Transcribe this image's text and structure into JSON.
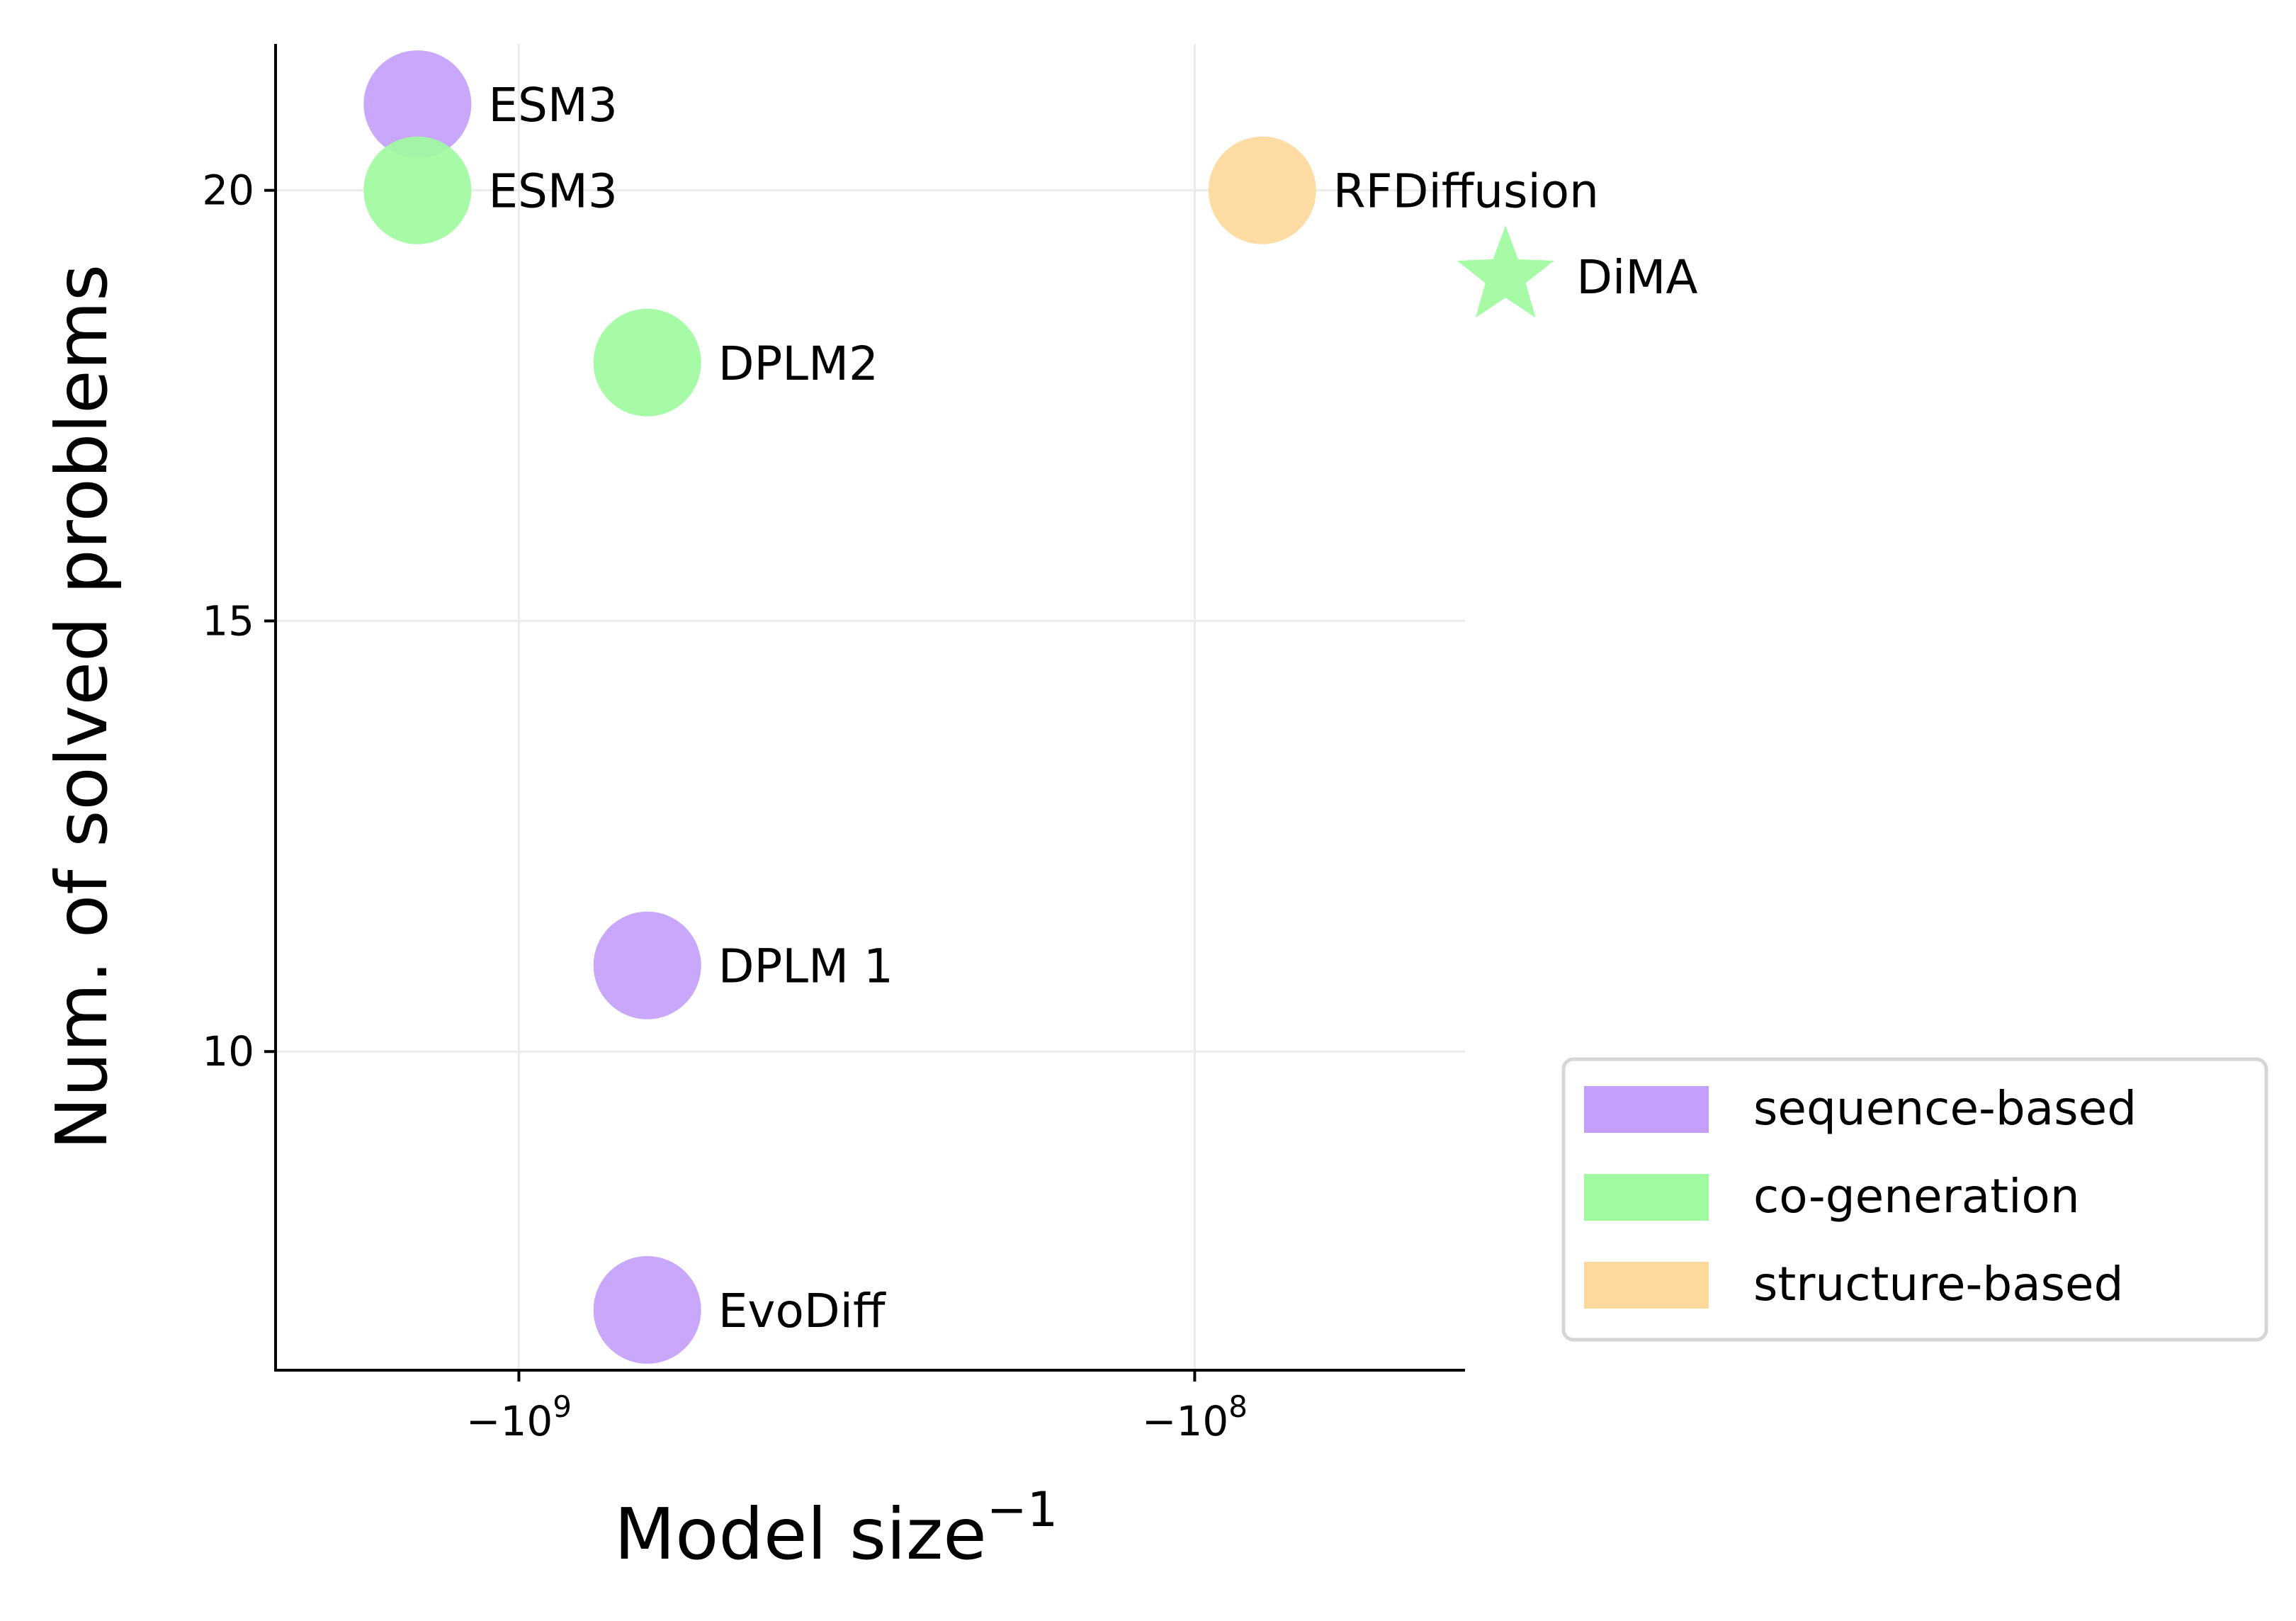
{
  "chart_data": {
    "type": "scatter",
    "title": "",
    "xlabel": "Model size",
    "xlabel_superscript": "−1",
    "ylabel": "Num. of solved problems",
    "x_scale": "symlog-negative",
    "x_log10_range": [
      9.36,
      7.6
    ],
    "ylim": [
      6.3,
      21.7
    ],
    "grid": true,
    "x_ticks": [
      {
        "log10": 9,
        "base": "−10",
        "exp": "9"
      },
      {
        "log10": 8,
        "base": "−10",
        "exp": "8"
      }
    ],
    "y_ticks": [
      {
        "value": 10,
        "label": "10"
      },
      {
        "value": 15,
        "label": "15"
      },
      {
        "value": 20,
        "label": "20"
      }
    ],
    "categories": [
      {
        "key": "sequence",
        "name": "sequence-based",
        "color": "#c49ffb"
      },
      {
        "key": "cogen",
        "name": "co-generation",
        "color": "#a0fba0"
      },
      {
        "key": "structure",
        "name": "structure-based",
        "color": "#ffd99c"
      }
    ],
    "points": [
      {
        "label": "ESM3",
        "model_size": 1400000000,
        "log10_size": 9.15,
        "y": 21,
        "category": "sequence",
        "marker": "circle"
      },
      {
        "label": "ESM3",
        "model_size": 1400000000,
        "log10_size": 9.15,
        "y": 20,
        "category": "cogen",
        "marker": "circle"
      },
      {
        "label": "DPLM2",
        "model_size": 650000000,
        "log10_size": 8.81,
        "y": 18,
        "category": "cogen",
        "marker": "circle"
      },
      {
        "label": "DPLM 1",
        "model_size": 650000000,
        "log10_size": 8.81,
        "y": 11,
        "category": "sequence",
        "marker": "circle"
      },
      {
        "label": "EvoDiff",
        "model_size": 640000000,
        "log10_size": 8.81,
        "y": 7,
        "category": "sequence",
        "marker": "circle"
      },
      {
        "label": "RFDiffusion",
        "model_size": 80000000,
        "log10_size": 7.9,
        "y": 20,
        "category": "structure",
        "marker": "circle"
      },
      {
        "label": "DiMA",
        "model_size": 35000000,
        "log10_size": 7.54,
        "y": 19,
        "category": "cogen",
        "marker": "star"
      }
    ],
    "legend_position": "lower-right outside"
  }
}
